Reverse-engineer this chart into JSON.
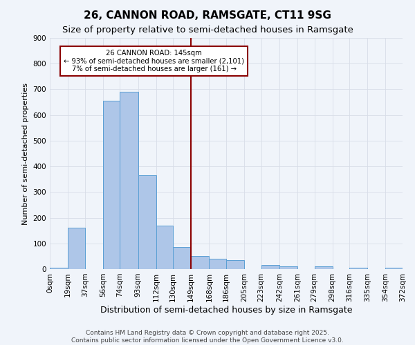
{
  "title": "26, CANNON ROAD, RAMSGATE, CT11 9SG",
  "subtitle": "Size of property relative to semi-detached houses in Ramsgate",
  "xlabel": "Distribution of semi-detached houses by size in Ramsgate",
  "ylabel": "Number of semi-detached properties",
  "bin_edges": [
    0,
    19,
    37,
    56,
    74,
    93,
    112,
    130,
    149,
    168,
    186,
    205,
    223,
    242,
    261,
    279,
    298,
    316,
    335,
    354,
    372
  ],
  "bar_heights": [
    5,
    160,
    0,
    655,
    690,
    365,
    170,
    85,
    50,
    40,
    35,
    0,
    15,
    10,
    0,
    10,
    0,
    5,
    0,
    5
  ],
  "bar_color": "#aec6e8",
  "bar_edgecolor": "#5a9fd4",
  "vline_x": 149,
  "vline_color": "#8b0000",
  "annotation_title": "26 CANNON ROAD: 145sqm",
  "annotation_line1": "← 93% of semi-detached houses are smaller (2,101)",
  "annotation_line2": "7% of semi-detached houses are larger (161) →",
  "annotation_box_edgecolor": "#8b0000",
  "ylim": [
    0,
    900
  ],
  "yticks": [
    0,
    100,
    200,
    300,
    400,
    500,
    600,
    700,
    800,
    900
  ],
  "tick_labels": [
    "0sqm",
    "19sqm",
    "37sqm",
    "56sqm",
    "74sqm",
    "93sqm",
    "112sqm",
    "130sqm",
    "149sqm",
    "168sqm",
    "186sqm",
    "205sqm",
    "223sqm",
    "242sqm",
    "261sqm",
    "279sqm",
    "298sqm",
    "316sqm",
    "335sqm",
    "354sqm",
    "372sqm"
  ],
  "background_color": "#f0f4fa",
  "grid_color": "#d8dde8",
  "footer1": "Contains HM Land Registry data © Crown copyright and database right 2025.",
  "footer2": "Contains public sector information licensed under the Open Government Licence v3.0.",
  "title_fontsize": 11,
  "subtitle_fontsize": 9.5,
  "xlabel_fontsize": 9,
  "ylabel_fontsize": 8,
  "tick_fontsize": 7.5,
  "footer_fontsize": 6.5
}
